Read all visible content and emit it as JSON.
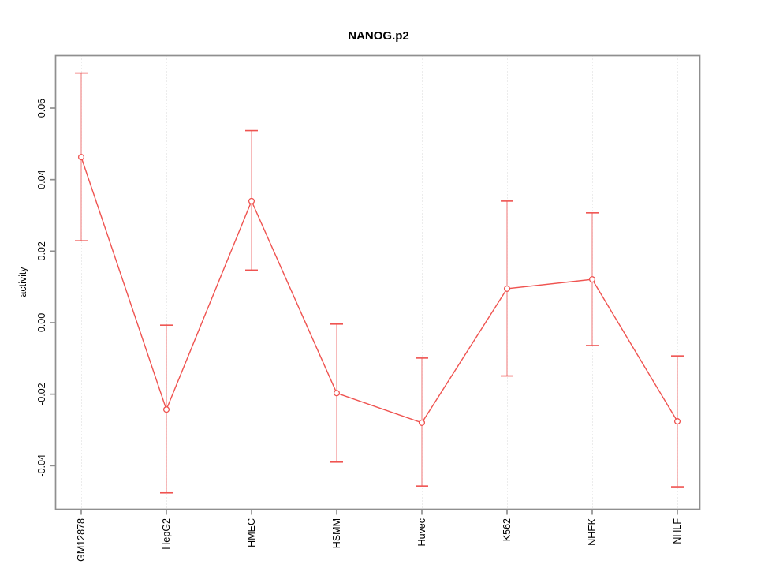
{
  "title": "NANOG.p2",
  "chart_data": {
    "type": "line",
    "title": "NANOG.p2",
    "xlabel": "",
    "ylabel": "activity",
    "categories": [
      "GM12878",
      "HepG2",
      "HMEC",
      "HSMM",
      "Huvec",
      "K562",
      "NHEK",
      "NHLF"
    ],
    "series": [
      {
        "name": "activity",
        "values": [
          0.0463,
          -0.0243,
          0.034,
          -0.0197,
          -0.028,
          0.0095,
          0.0121,
          -0.0276
        ],
        "error_low": [
          0.0229,
          -0.0476,
          0.0147,
          -0.039,
          -0.0457,
          -0.0149,
          -0.0064,
          -0.0459
        ],
        "error_high": [
          0.0698,
          -0.0007,
          0.0537,
          -0.0004,
          -0.0099,
          0.034,
          0.0307,
          -0.0093
        ]
      }
    ],
    "y_ticks": [
      0.06,
      0.04,
      0.02,
      0,
      -0.02,
      -0.04
    ],
    "y_tick_labels": [
      "0.06",
      "0.04",
      "0.02",
      "0.00",
      "-0.02",
      "-0.04"
    ],
    "ylim": [
      -0.052,
      0.075
    ],
    "legend": "none",
    "grid": {
      "horizontal_dotted_at": 0,
      "vertical_dotted_at_each_category": true
    },
    "marker": "open-circle",
    "colors": {
      "series": "#ef5350",
      "error_bar_line": "#f5a8a8",
      "grid_line": "#d9d9d9",
      "axis_box": "#8f8f8f",
      "text": "#000000",
      "background": "#ffffff"
    }
  }
}
